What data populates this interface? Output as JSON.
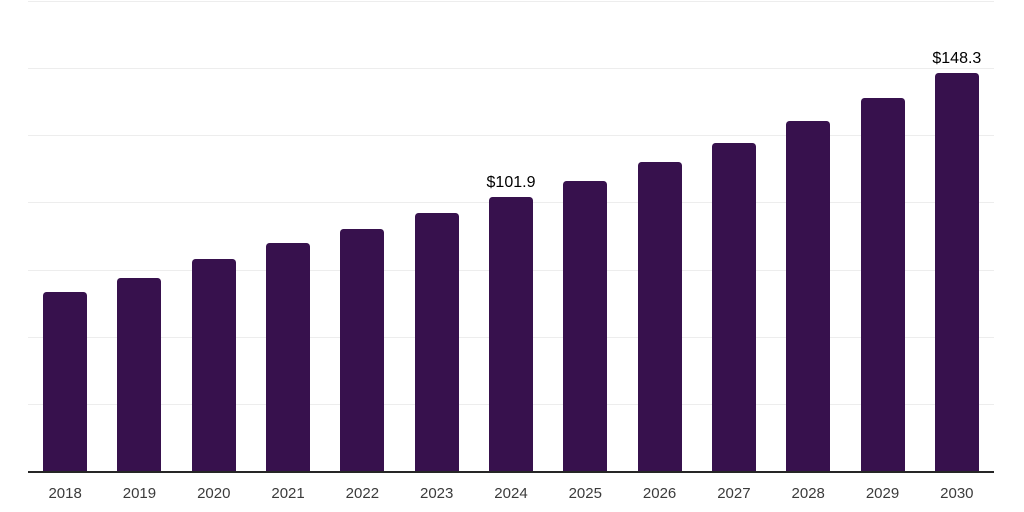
{
  "chart_data": {
    "type": "bar",
    "title": "",
    "xlabel": "",
    "ylabel": "",
    "categories": [
      "2018",
      "2019",
      "2020",
      "2021",
      "2022",
      "2023",
      "2024",
      "2025",
      "2026",
      "2027",
      "2028",
      "2029",
      "2030"
    ],
    "values": [
      66.8,
      72.0,
      78.8,
      84.9,
      90.0,
      96.0,
      101.9,
      107.8,
      115.2,
      122.0,
      130.5,
      139.0,
      148.3
    ],
    "annotations": [
      {
        "category_index": 6,
        "text": "$101.9"
      },
      {
        "category_index": 12,
        "text": "$148.3"
      }
    ],
    "ylim": [
      0,
      175
    ],
    "gridline_values": [
      25,
      50,
      75,
      100,
      125,
      150,
      175
    ],
    "grid": true,
    "legend": false,
    "colors": {
      "bar": "#37114D",
      "axis": "#262626",
      "gridline": "#ededed",
      "tick_label": "#3b3b3b",
      "value_label": "#000000",
      "background": "#ffffff"
    }
  }
}
